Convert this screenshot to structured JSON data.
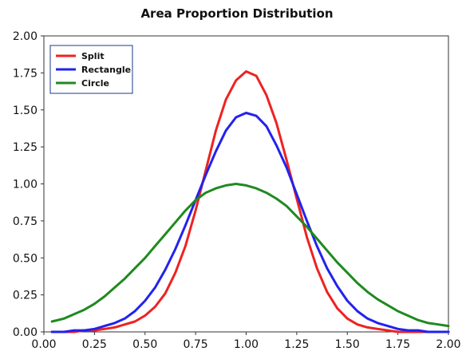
{
  "chart_data": {
    "type": "line",
    "title": "Area Proportion Distribution",
    "xlabel": "",
    "ylabel": "",
    "xlim": [
      0.0,
      2.0
    ],
    "ylim": [
      0.0,
      2.0
    ],
    "x_ticks": [
      "0.00",
      "0.25",
      "0.50",
      "0.75",
      "1.00",
      "1.25",
      "1.50",
      "1.75",
      "2.00"
    ],
    "y_ticks": [
      "0.00",
      "0.25",
      "0.50",
      "0.75",
      "1.00",
      "1.25",
      "1.50",
      "1.75",
      "2.00"
    ],
    "grid": false,
    "legend_position": "top-left",
    "x": [
      0.04,
      0.1,
      0.15,
      0.2,
      0.25,
      0.3,
      0.35,
      0.4,
      0.45,
      0.5,
      0.55,
      0.6,
      0.65,
      0.7,
      0.75,
      0.8,
      0.85,
      0.9,
      0.95,
      1.0,
      1.05,
      1.1,
      1.15,
      1.2,
      1.25,
      1.3,
      1.35,
      1.4,
      1.45,
      1.5,
      1.55,
      1.6,
      1.65,
      1.7,
      1.75,
      1.8,
      1.85,
      1.9,
      1.95,
      2.0
    ],
    "series": [
      {
        "name": "Split",
        "color": "#ee2222",
        "values": [
          0.0,
          0.0,
          0.0,
          0.01,
          0.01,
          0.02,
          0.03,
          0.05,
          0.07,
          0.11,
          0.17,
          0.26,
          0.4,
          0.58,
          0.82,
          1.09,
          1.36,
          1.57,
          1.7,
          1.76,
          1.73,
          1.6,
          1.41,
          1.16,
          0.9,
          0.64,
          0.43,
          0.27,
          0.16,
          0.09,
          0.05,
          0.03,
          0.02,
          0.01,
          0.0,
          0.0,
          0.0,
          0.0,
          0.0,
          0.0
        ]
      },
      {
        "name": "Rectangle",
        "color": "#2222ee",
        "values": [
          0.0,
          0.0,
          0.01,
          0.01,
          0.02,
          0.04,
          0.06,
          0.09,
          0.14,
          0.21,
          0.3,
          0.42,
          0.56,
          0.72,
          0.89,
          1.06,
          1.22,
          1.36,
          1.45,
          1.48,
          1.46,
          1.39,
          1.26,
          1.11,
          0.93,
          0.75,
          0.58,
          0.43,
          0.31,
          0.21,
          0.14,
          0.09,
          0.06,
          0.04,
          0.02,
          0.01,
          0.01,
          0.0,
          0.0,
          0.0
        ]
      },
      {
        "name": "Circle",
        "color": "#1f8a1f",
        "values": [
          0.07,
          0.09,
          0.12,
          0.15,
          0.19,
          0.24,
          0.3,
          0.36,
          0.43,
          0.5,
          0.58,
          0.66,
          0.74,
          0.82,
          0.89,
          0.94,
          0.97,
          0.99,
          1.0,
          0.99,
          0.97,
          0.94,
          0.9,
          0.85,
          0.78,
          0.71,
          0.63,
          0.55,
          0.47,
          0.4,
          0.33,
          0.27,
          0.22,
          0.18,
          0.14,
          0.11,
          0.08,
          0.06,
          0.05,
          0.04
        ]
      }
    ]
  }
}
